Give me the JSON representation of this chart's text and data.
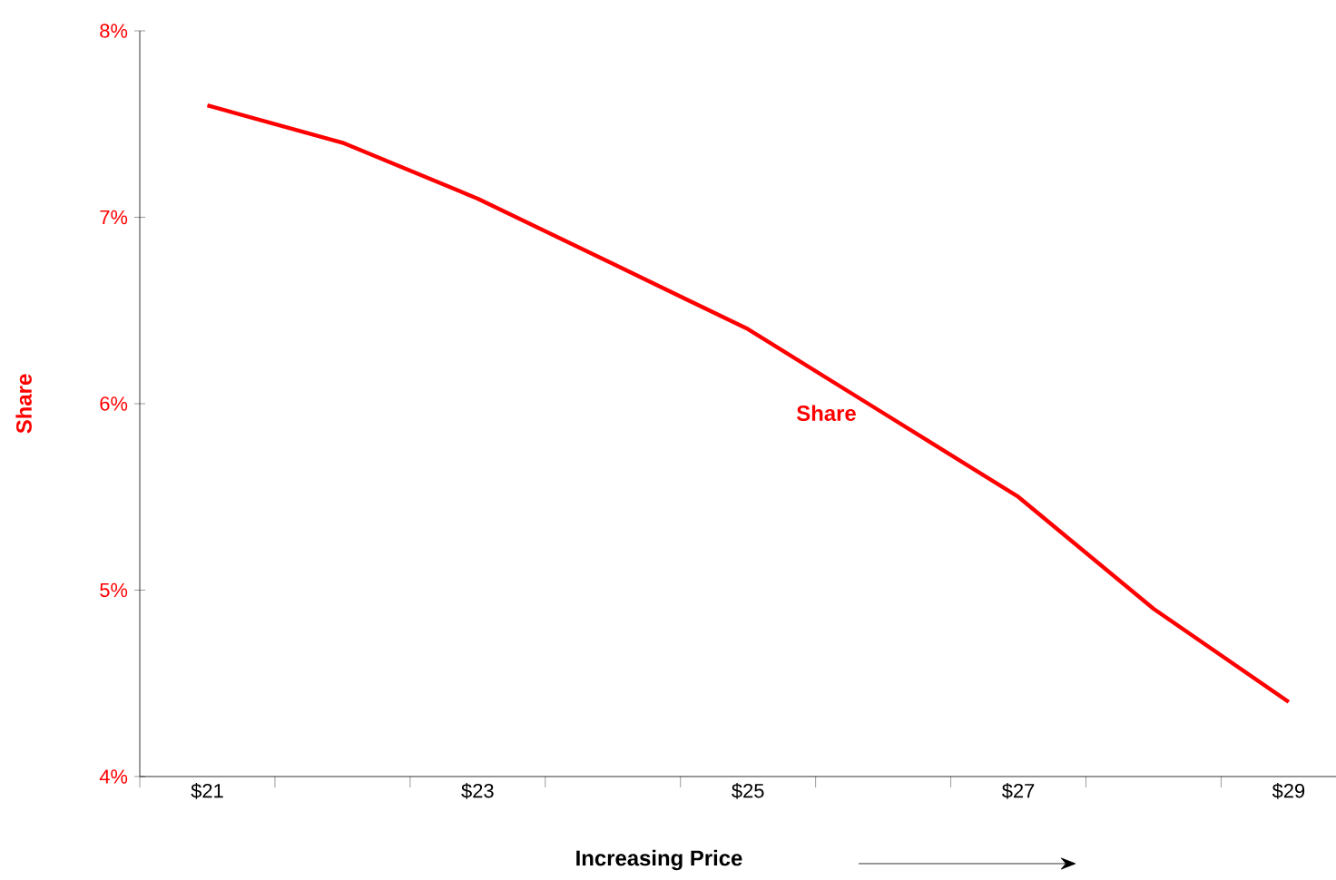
{
  "chart_data": {
    "type": "line",
    "categories": [
      "$21",
      null,
      "$23",
      null,
      "$25",
      null,
      "$27",
      null,
      "$29"
    ],
    "series": [
      {
        "name": "Share",
        "color": "#ff0000",
        "values": [
          7.6,
          7.4,
          7.1,
          6.75,
          6.4,
          5.95,
          5.5,
          4.9,
          4.4
        ]
      }
    ],
    "xlabel": "Increasing Price",
    "ylabel": "Share",
    "ylim": [
      4,
      8
    ],
    "yticks": [
      {
        "value": 4,
        "label": "4%"
      },
      {
        "value": 5,
        "label": "5%"
      },
      {
        "value": 6,
        "label": "6%"
      },
      {
        "value": 7,
        "label": "7%"
      },
      {
        "value": 8,
        "label": "8%"
      }
    ],
    "grid": false,
    "legend": false,
    "marker": "none",
    "line_style": "solid"
  }
}
